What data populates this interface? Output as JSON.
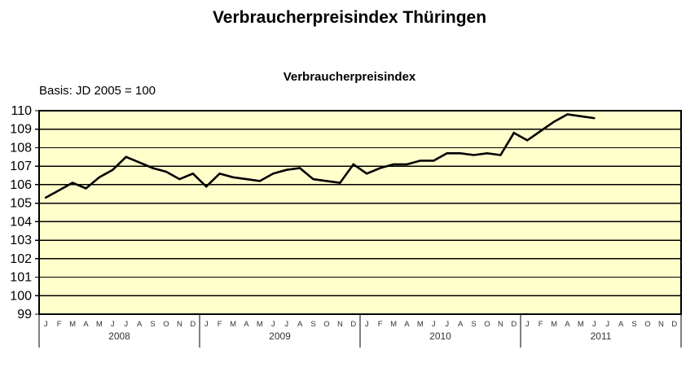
{
  "page": {
    "title": "Verbraucherpreisindex Thüringen"
  },
  "chart_data": {
    "type": "line",
    "title": "Verbraucherpreisindex",
    "subtitle": "Basis: JD 2005 = 100",
    "xlabel": "",
    "ylabel": "",
    "ylim": [
      99,
      110
    ],
    "y_ticks": [
      110,
      109,
      108,
      107,
      106,
      105,
      104,
      103,
      102,
      101,
      100,
      99
    ],
    "grid": "horizontal",
    "legend": "none",
    "plot_bg_color": "#FFFFCC",
    "grid_color": "#000000",
    "line_color": "#000000",
    "axis_color": "#000000",
    "label_color": "#333333",
    "month_labels": [
      "J",
      "F",
      "M",
      "A",
      "M",
      "J",
      "J",
      "A",
      "S",
      "O",
      "N",
      "D"
    ],
    "series": [
      {
        "year": "2008",
        "values": [
          105.3,
          105.7,
          106.1,
          105.8,
          106.4,
          106.8,
          107.5,
          107.2,
          106.9,
          106.7,
          106.3,
          106.6
        ]
      },
      {
        "year": "2009",
        "values": [
          105.9,
          106.6,
          106.4,
          106.3,
          106.2,
          106.6,
          106.8,
          106.9,
          106.3,
          106.2,
          106.1,
          107.1
        ]
      },
      {
        "year": "2010",
        "values": [
          106.6,
          106.9,
          107.1,
          107.1,
          107.3,
          107.3,
          107.7,
          107.7,
          107.6,
          107.7,
          107.6,
          108.8
        ]
      },
      {
        "year": "2011",
        "values": [
          108.4,
          108.9,
          109.4,
          109.8,
          109.7,
          109.6
        ]
      }
    ]
  }
}
